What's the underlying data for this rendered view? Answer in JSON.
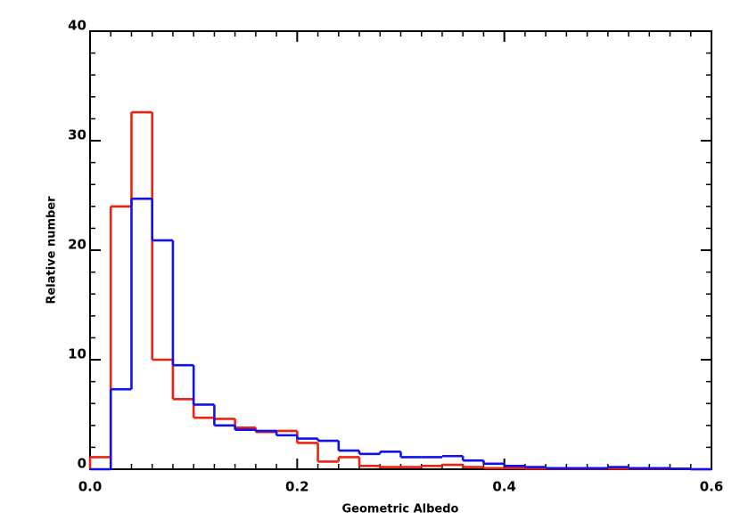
{
  "chart_data": {
    "type": "histogram",
    "xlabel": "Geometric Albedo",
    "ylabel": "Relative number",
    "bins": [
      0,
      0.02,
      0.04,
      0.06,
      0.08,
      0.1,
      0.12,
      0.14,
      0.16,
      0.18,
      0.2,
      0.22,
      0.24,
      0.26,
      0.28,
      0.3,
      0.32,
      0.34,
      0.36,
      0.38,
      0.4,
      0.42,
      0.44,
      0.46,
      0.48,
      0.5,
      0.52,
      0.54,
      0.56,
      0.58,
      0.6
    ],
    "series": [
      {
        "color": "#ee2211",
        "values": [
          1.1,
          24,
          32.6,
          10,
          6.4,
          4.7,
          4.6,
          3.8,
          3.4,
          3.5,
          2.4,
          0.7,
          1.1,
          0.3,
          0.2,
          0.2,
          0.3,
          0.4,
          0.2,
          0.1,
          0.1,
          0.05,
          0.05,
          0.05,
          0.05,
          0.05,
          0.05,
          0.05,
          0.05,
          0
        ]
      },
      {
        "color": "#1111ee",
        "values": [
          0,
          7.3,
          24.7,
          20.9,
          9.5,
          5.9,
          4.0,
          3.6,
          3.5,
          3.1,
          2.8,
          2.6,
          1.7,
          1.4,
          1.6,
          1.1,
          1.1,
          1.2,
          0.8,
          0.5,
          0.3,
          0.2,
          0.1,
          0.1,
          0.1,
          0.2,
          0.1,
          0.1,
          0.05,
          0
        ]
      }
    ],
    "xlim": [
      0,
      0.6
    ],
    "ylim": [
      0,
      40
    ],
    "xticks": [
      {
        "value": 0,
        "label": "0.0"
      },
      0.2,
      0.4,
      0.6
    ],
    "yticks": [
      0,
      10,
      20,
      30,
      40
    ]
  }
}
